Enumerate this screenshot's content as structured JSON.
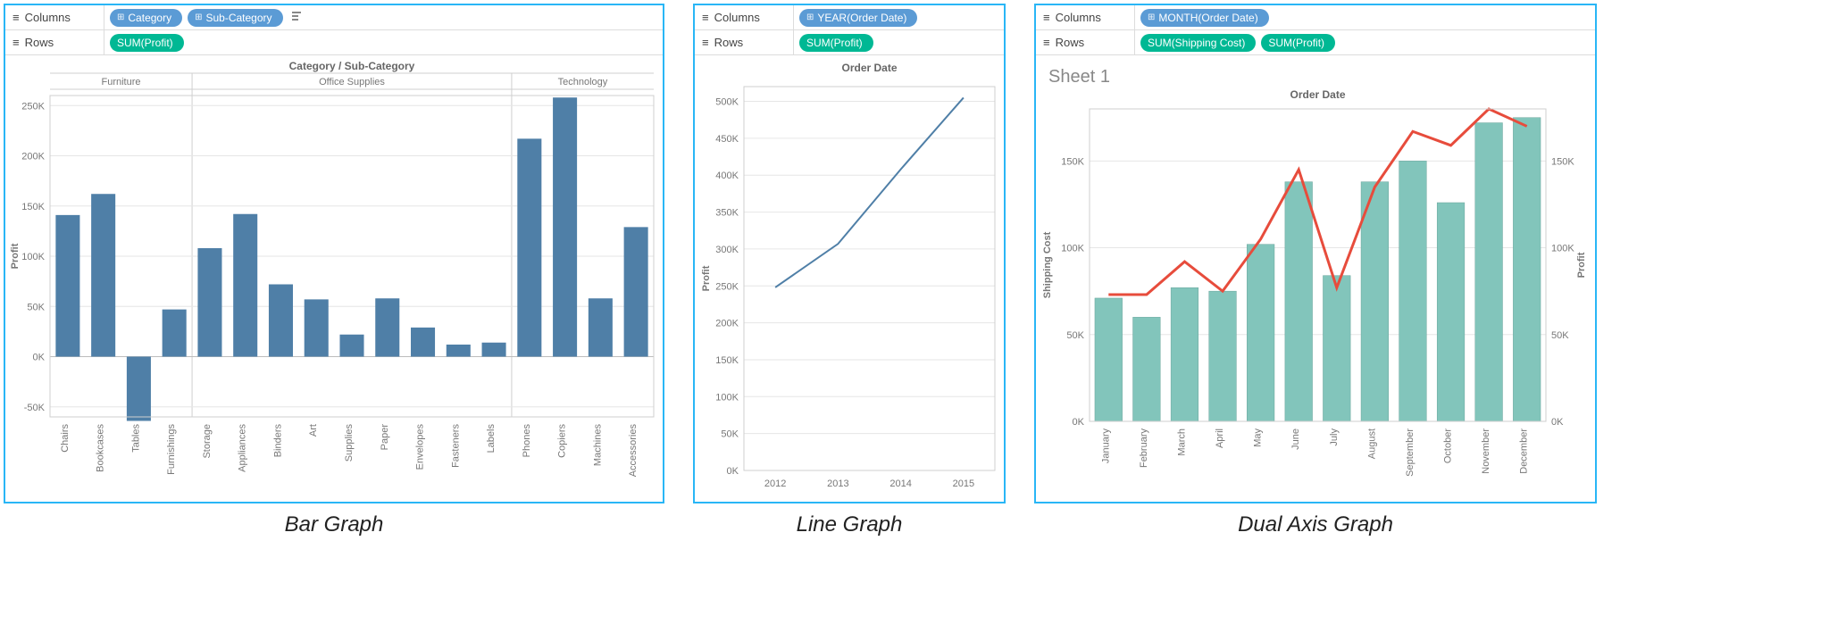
{
  "captions": {
    "bar": "Bar Graph",
    "line": "Line Graph",
    "dual": "Dual Axis Graph"
  },
  "shelf_labels": {
    "columns": "Columns",
    "rows": "Rows"
  },
  "bar_panel": {
    "columns_pills": [
      {
        "text": "Category",
        "color": "blue",
        "icon": "⊞"
      },
      {
        "text": "Sub-Category",
        "color": "blue",
        "icon": "⊞"
      }
    ],
    "rows_pills": [
      {
        "text": "SUM(Profit)",
        "color": "green"
      }
    ],
    "chart": {
      "type": "bar",
      "title": "Category  /  Sub-Category",
      "y_label": "Profit",
      "y_min": -60000,
      "y_max": 260000,
      "y_ticks": [
        -50000,
        0,
        50000,
        100000,
        150000,
        200000,
        250000
      ],
      "y_tick_labels": [
        "-50K",
        "0K",
        "50K",
        "100K",
        "150K",
        "200K",
        "250K"
      ],
      "bar_color": "#4f7fa7",
      "zero_line_color": "#bcbcbc",
      "grid_color": "#e6e6e6",
      "bg": "#ffffff",
      "rotated_label_fontsize": 11,
      "groups": [
        {
          "name": "Furniture",
          "bars": [
            {
              "label": "Chairs",
              "value": 141000
            },
            {
              "label": "Bookcases",
              "value": 162000
            },
            {
              "label": "Tables",
              "value": -64000
            },
            {
              "label": "Furnishings",
              "value": 47000
            }
          ]
        },
        {
          "name": "Office Supplies",
          "bars": [
            {
              "label": "Storage",
              "value": 108000
            },
            {
              "label": "Appliances",
              "value": 142000
            },
            {
              "label": "Binders",
              "value": 72000
            },
            {
              "label": "Art",
              "value": 57000
            },
            {
              "label": "Supplies",
              "value": 22000
            },
            {
              "label": "Paper",
              "value": 58000
            },
            {
              "label": "Envelopes",
              "value": 29000
            },
            {
              "label": "Fasteners",
              "value": 12000
            },
            {
              "label": "Labels",
              "value": 14000
            }
          ]
        },
        {
          "name": "Technology",
          "bars": [
            {
              "label": "Phones",
              "value": 217000
            },
            {
              "label": "Copiers",
              "value": 258000
            },
            {
              "label": "Machines",
              "value": 58000
            },
            {
              "label": "Accessories",
              "value": 129000
            }
          ]
        }
      ]
    }
  },
  "line_panel": {
    "columns_pills": [
      {
        "text": "YEAR(Order Date)",
        "color": "blue",
        "icon": "⊞"
      }
    ],
    "rows_pills": [
      {
        "text": "SUM(Profit)",
        "color": "green"
      }
    ],
    "chart": {
      "type": "line",
      "title": "Order Date",
      "y_label": "Profit",
      "y_min": 0,
      "y_max": 520000,
      "y_ticks": [
        0,
        50000,
        100000,
        150000,
        200000,
        250000,
        300000,
        350000,
        400000,
        450000,
        500000
      ],
      "y_tick_labels": [
        "0K",
        "50K",
        "100K",
        "150K",
        "200K",
        "250K",
        "300K",
        "350K",
        "400K",
        "450K",
        "500K"
      ],
      "x_values": [
        2012,
        2013,
        2014,
        2015
      ],
      "values": [
        248000,
        307000,
        408000,
        505000
      ],
      "line_color": "#4f7fa7",
      "line_width": 2,
      "grid_color": "#e6e6e6",
      "bg": "#ffffff"
    }
  },
  "dual_panel": {
    "columns_pills": [
      {
        "text": "MONTH(Order Date)",
        "color": "blue",
        "icon": "⊞"
      }
    ],
    "rows_pills": [
      {
        "text": "SUM(Shipping Cost)",
        "color": "green"
      },
      {
        "text": "SUM(Profit)",
        "color": "green"
      }
    ],
    "sheet_title": "Sheet 1",
    "chart": {
      "type": "dual",
      "title": "Order Date",
      "y_left_label": "Shipping Cost",
      "y_right_label": "Profit",
      "y_min": 0,
      "y_max": 180000,
      "y_ticks": [
        0,
        50000,
        100000,
        150000
      ],
      "y_tick_labels": [
        "0K",
        "50K",
        "100K",
        "150K"
      ],
      "categories": [
        "January",
        "February",
        "March",
        "April",
        "May",
        "June",
        "July",
        "August",
        "September",
        "October",
        "November",
        "December"
      ],
      "bar_values": [
        71000,
        60000,
        77000,
        75000,
        102000,
        138000,
        84000,
        138000,
        150000,
        126000,
        172000,
        175000
      ],
      "line_values": [
        73000,
        73000,
        92000,
        75000,
        105000,
        145000,
        77000,
        135000,
        167000,
        159000,
        180000,
        170000
      ],
      "bar_color": "#82c5bb",
      "bar_border": "#6aa59c",
      "line_color": "#e74c3c",
      "line_width": 3,
      "grid_color": "#e6e6e6",
      "bg": "#ffffff",
      "rotated_label_fontsize": 11
    }
  }
}
